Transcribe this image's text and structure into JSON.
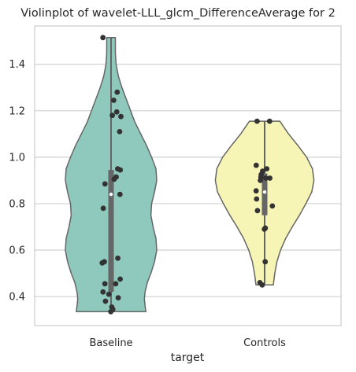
{
  "chart_data": {
    "type": "violin",
    "title": "Violinplot of wavelet-LLL_glcm_DifferenceAverage for 2",
    "xlabel": "target",
    "ylabel": "",
    "categories": [
      "Baseline",
      "Controls"
    ],
    "ylim": [
      0.275,
      1.565
    ],
    "yticks": [
      0.4,
      0.6,
      0.8,
      1.0,
      1.2,
      1.4
    ],
    "ytick_labels": [
      "0.4",
      "0.6",
      "0.8",
      "1.0",
      "1.2",
      "1.4"
    ],
    "grid": "horizontal",
    "colors": {
      "Baseline": "#8fc9bd",
      "Controls": "#f6f5b6",
      "outline": "#666666",
      "points": "#333333",
      "grid": "#d0d0d0",
      "spine": "#cccccc",
      "median": "#ffffff"
    },
    "series": [
      {
        "category": "Baseline",
        "min": 0.335,
        "max": 1.515,
        "q1": 0.42,
        "median": 0.84,
        "q3": 0.945,
        "density": [
          [
            0.335,
            0.48
          ],
          [
            0.36,
            0.47
          ],
          [
            0.39,
            0.46
          ],
          [
            0.42,
            0.47
          ],
          [
            0.46,
            0.5
          ],
          [
            0.5,
            0.55
          ],
          [
            0.55,
            0.6
          ],
          [
            0.6,
            0.63
          ],
          [
            0.65,
            0.62
          ],
          [
            0.7,
            0.58
          ],
          [
            0.75,
            0.55
          ],
          [
            0.8,
            0.56
          ],
          [
            0.85,
            0.6
          ],
          [
            0.9,
            0.63
          ],
          [
            0.95,
            0.62
          ],
          [
            1.0,
            0.56
          ],
          [
            1.05,
            0.49
          ],
          [
            1.1,
            0.41
          ],
          [
            1.15,
            0.33
          ],
          [
            1.2,
            0.27
          ],
          [
            1.25,
            0.21
          ],
          [
            1.3,
            0.15
          ],
          [
            1.35,
            0.1
          ],
          [
            1.4,
            0.07
          ],
          [
            1.45,
            0.06
          ],
          [
            1.515,
            0.06
          ]
        ],
        "points": [
          1.515,
          1.28,
          1.245,
          1.195,
          1.18,
          1.175,
          1.11,
          0.95,
          0.945,
          0.915,
          0.905,
          0.885,
          0.84,
          0.78,
          0.565,
          0.55,
          0.545,
          0.475,
          0.455,
          0.455,
          0.42,
          0.41,
          0.395,
          0.38,
          0.355,
          0.345,
          0.335
        ]
      },
      {
        "category": "Controls",
        "min": 0.45,
        "max": 1.155,
        "q1": 0.75,
        "median": 0.85,
        "q3": 0.93,
        "density": [
          [
            0.45,
            0.12
          ],
          [
            0.5,
            0.14
          ],
          [
            0.55,
            0.17
          ],
          [
            0.6,
            0.22
          ],
          [
            0.65,
            0.29
          ],
          [
            0.7,
            0.38
          ],
          [
            0.75,
            0.48
          ],
          [
            0.8,
            0.57
          ],
          [
            0.85,
            0.65
          ],
          [
            0.9,
            0.68
          ],
          [
            0.95,
            0.66
          ],
          [
            1.0,
            0.58
          ],
          [
            1.05,
            0.46
          ],
          [
            1.1,
            0.33
          ],
          [
            1.155,
            0.21
          ]
        ],
        "points": [
          1.155,
          1.155,
          0.965,
          0.95,
          0.94,
          0.925,
          0.915,
          0.91,
          0.91,
          0.9,
          0.855,
          0.82,
          0.79,
          0.77,
          0.695,
          0.69,
          0.55,
          0.46,
          0.45
        ]
      }
    ]
  }
}
